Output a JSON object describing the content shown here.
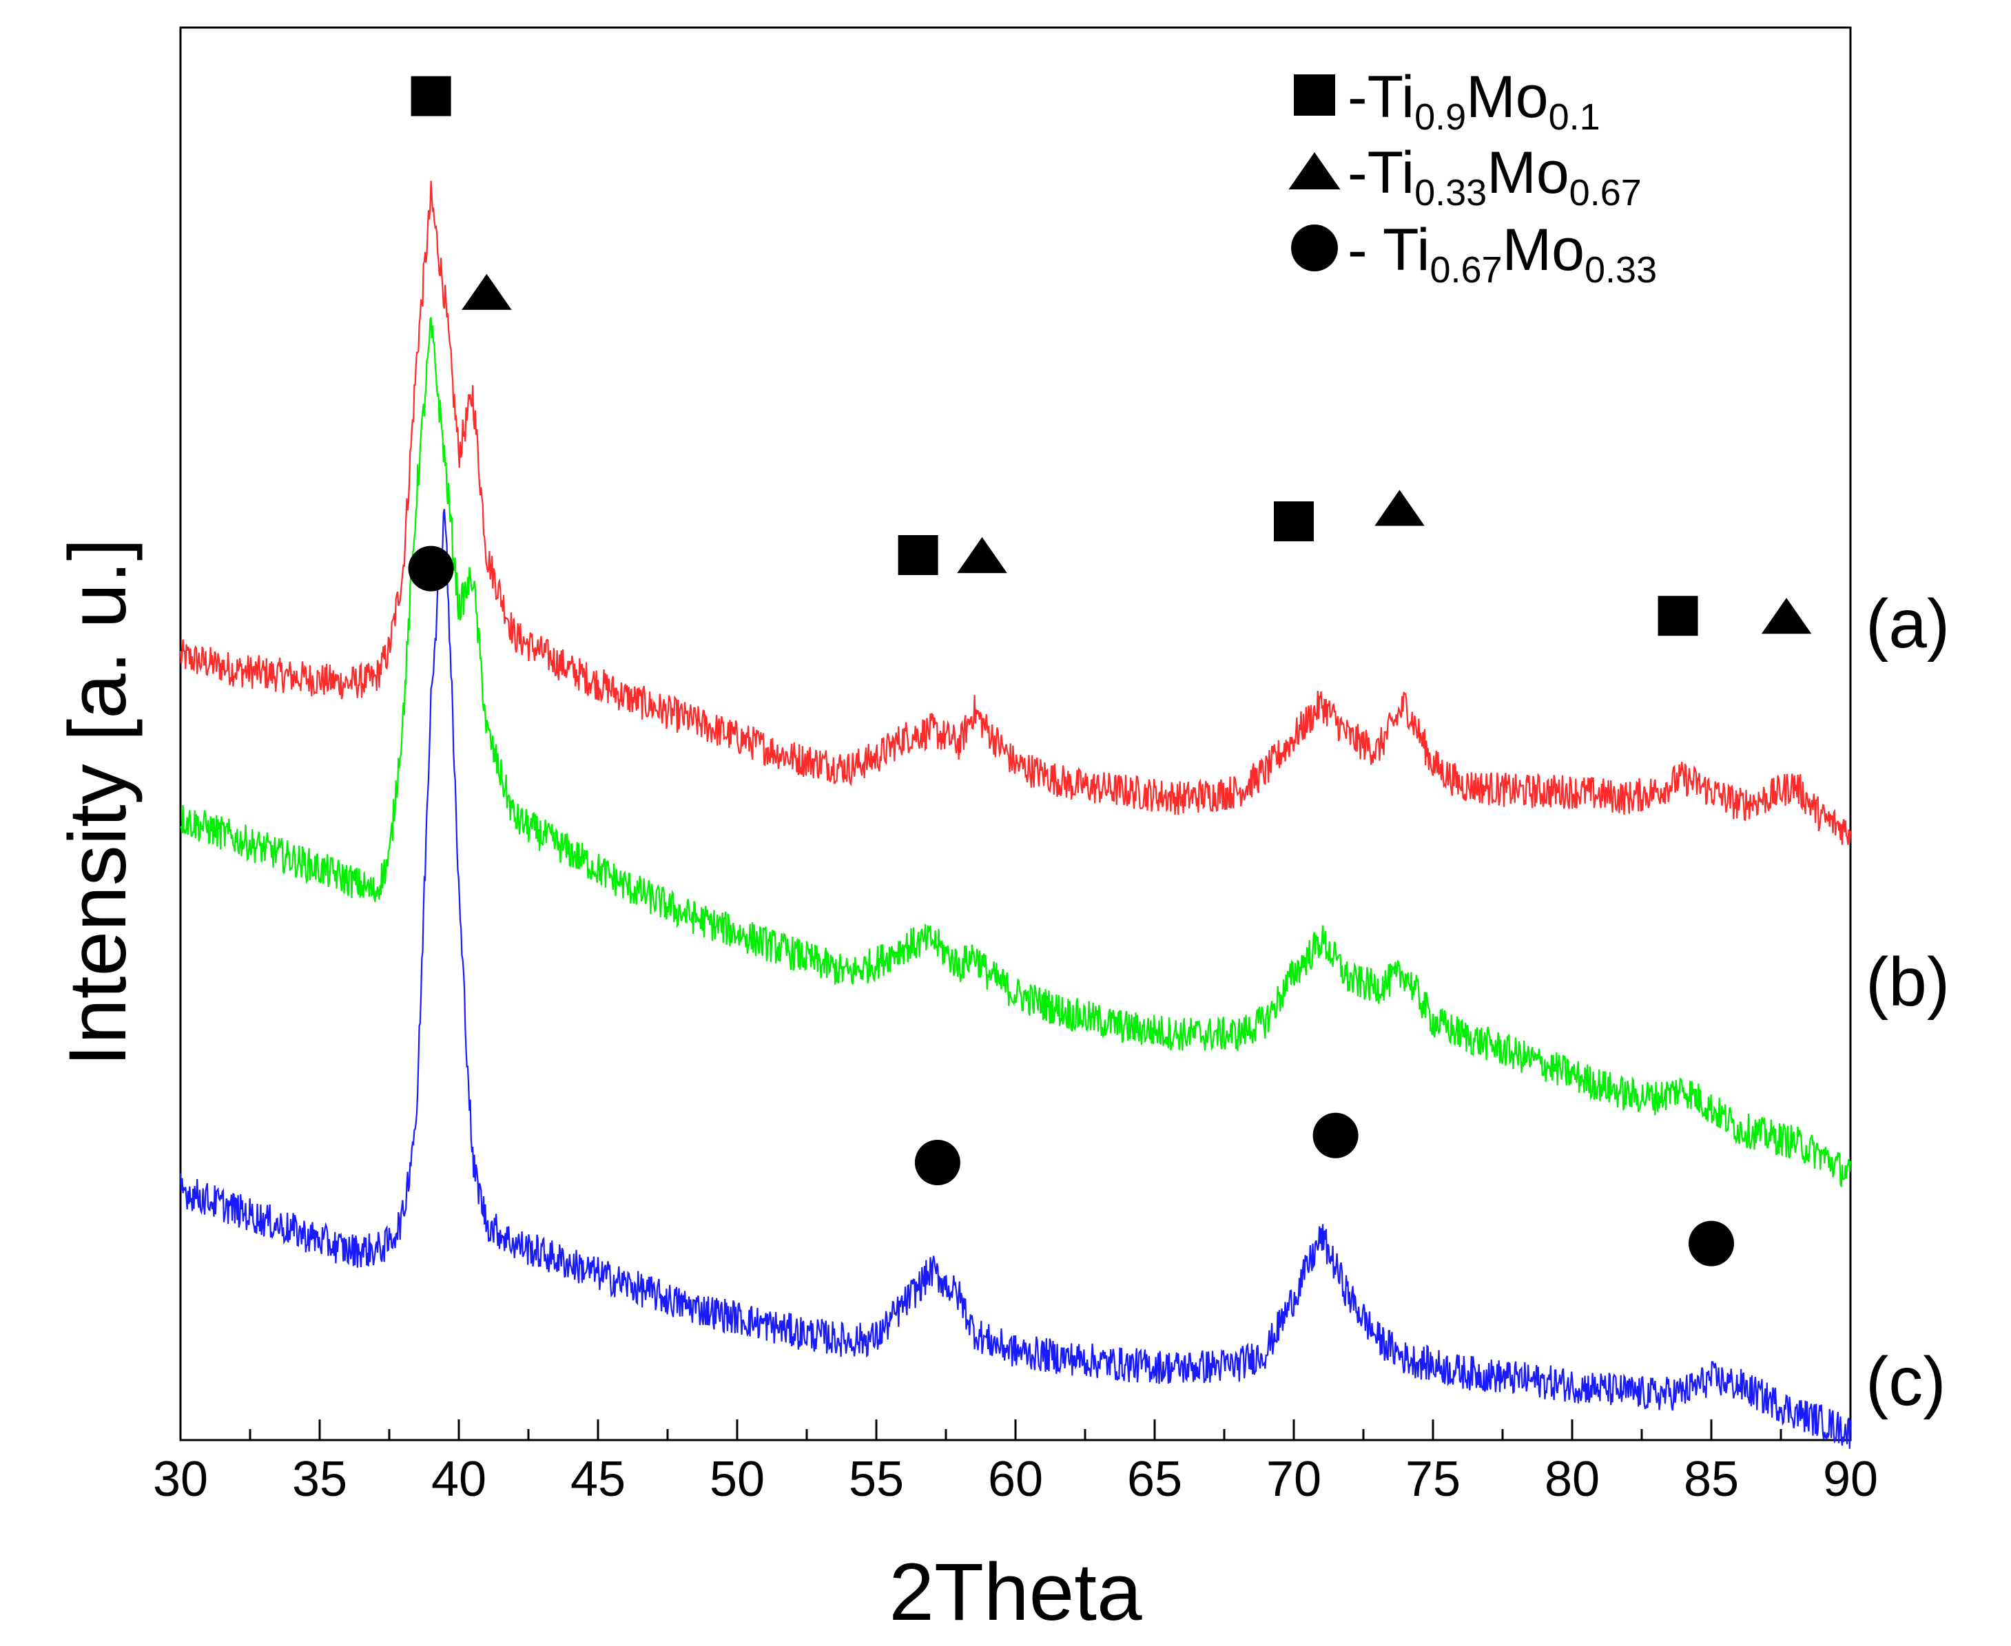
{
  "chart_data": {
    "type": "line",
    "title": "",
    "xlabel": "2Theta",
    "ylabel": "Intensity [a. u.]",
    "xlim": [
      30,
      90
    ],
    "ylim": [
      0,
      100
    ],
    "xticks": [
      30,
      35,
      40,
      45,
      50,
      55,
      60,
      65,
      70,
      75,
      80,
      85,
      90
    ],
    "x": [
      30,
      32,
      34,
      36,
      37,
      37.5,
      38,
      38.5,
      39,
      39.5,
      40,
      40.5,
      41,
      42,
      44,
      46,
      48,
      50,
      52,
      54,
      55,
      56,
      57,
      58,
      58.5,
      59,
      60,
      62,
      64,
      66,
      68,
      69,
      70,
      71,
      72,
      73,
      74,
      75,
      76,
      78,
      80,
      82,
      83,
      84,
      85,
      86,
      87,
      88,
      89,
      90
    ],
    "series": [
      {
        "name": "(a)",
        "color": "#ff2a2a",
        "values": [
          57.5,
          56.5,
          56.0,
          55.5,
          55.8,
          58.0,
          64.0,
          80.0,
          91.5,
          84.0,
          72.5,
          77.0,
          65.0,
          59.0,
          56.5,
          54.5,
          53.0,
          51.5,
          50.0,
          49.2,
          50.0,
          51.5,
          52.0,
          51.0,
          53.5,
          52.0,
          49.5,
          48.0,
          47.5,
          47.0,
          47.5,
          49.0,
          51.5,
          54.0,
          51.5,
          50.5,
          54.0,
          49.5,
          48.0,
          47.5,
          47.5,
          47.0,
          47.5,
          48.5,
          47.5,
          46.5,
          47.0,
          48.0,
          45.5,
          44.5
        ]
      },
      {
        "name": "(b)",
        "color": "#00ee00",
        "values": [
          45.5,
          44.0,
          42.5,
          41.0,
          40.0,
          42.5,
          53.0,
          70.0,
          82.0,
          72.0,
          61.0,
          63.5,
          52.0,
          45.5,
          43.0,
          40.5,
          38.5,
          37.0,
          35.5,
          34.0,
          34.8,
          36.0,
          36.5,
          34.5,
          35.5,
          34.0,
          32.5,
          31.0,
          30.0,
          29.5,
          29.5,
          30.5,
          34.0,
          36.5,
          33.5,
          33.0,
          34.0,
          30.5,
          29.5,
          28.0,
          26.5,
          25.0,
          24.8,
          25.5,
          24.0,
          22.5,
          22.0,
          21.5,
          20.5,
          19.0
        ]
      },
      {
        "name": "(c)",
        "color": "#1a1aff",
        "values": [
          18.0,
          16.5,
          15.0,
          13.5,
          13.5,
          14.0,
          16.0,
          24.0,
          55.0,
          69.0,
          40.0,
          20.0,
          15.5,
          14.0,
          12.5,
          11.0,
          9.5,
          8.5,
          7.5,
          6.8,
          7.0,
          9.5,
          12.0,
          10.0,
          7.5,
          6.8,
          6.0,
          5.5,
          5.0,
          4.8,
          5.0,
          6.0,
          10.0,
          14.5,
          10.0,
          7.0,
          5.5,
          5.0,
          4.5,
          4.0,
          3.5,
          3.0,
          2.8,
          3.0,
          4.0,
          3.5,
          2.5,
          1.5,
          0.8,
          0.0
        ]
      }
    ],
    "curve_labels": [
      "(a)",
      "(b)",
      "(c)"
    ],
    "legend": {
      "placement": "top-right",
      "entries": [
        {
          "marker": "square",
          "text": "-Ti",
          "sub1": "0.9",
          "mid": "Mo",
          "sub2": "0.1"
        },
        {
          "marker": "triangle",
          "text": "-Ti",
          "sub1": "0.33",
          "mid": "Mo",
          "sub2": "0.67"
        },
        {
          "marker": "circle",
          "text": "- Ti",
          "sub1": "0.67",
          "mid": "Mo",
          "sub2": "0.33"
        }
      ]
    },
    "peak_markers": [
      {
        "marker": "square",
        "x": 39.0,
        "y": 99
      },
      {
        "marker": "triangle",
        "x": 41.0,
        "y": 84.5
      },
      {
        "marker": "square",
        "x": 56.5,
        "y": 65
      },
      {
        "marker": "triangle",
        "x": 58.8,
        "y": 65
      },
      {
        "marker": "square",
        "x": 70.0,
        "y": 67.5
      },
      {
        "marker": "triangle",
        "x": 73.8,
        "y": 68.5
      },
      {
        "marker": "square",
        "x": 83.8,
        "y": 60.5
      },
      {
        "marker": "triangle",
        "x": 87.7,
        "y": 60.5
      },
      {
        "marker": "circle",
        "x": 39.0,
        "y": 64
      },
      {
        "marker": "circle",
        "x": 57.2,
        "y": 20
      },
      {
        "marker": "circle",
        "x": 71.5,
        "y": 22
      },
      {
        "marker": "circle",
        "x": 85.0,
        "y": 14
      }
    ]
  }
}
